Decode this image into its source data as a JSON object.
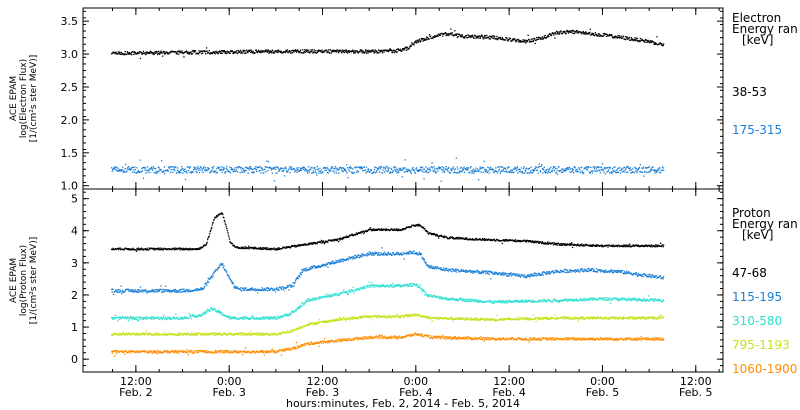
{
  "chart_data": {
    "type": "scatter",
    "x_axis": {
      "label": "hours:minutes, Feb.  2, 2014 - Feb.  5, 2014",
      "ticks": [
        {
          "t": 12,
          "time": "12:00",
          "day": "Feb. 2"
        },
        {
          "t": 24,
          "time": "0:00",
          "day": "Feb. 3"
        },
        {
          "t": 36,
          "time": "12:00",
          "day": "Feb. 3"
        },
        {
          "t": 48,
          "time": "0:00",
          "day": "Feb. 4"
        },
        {
          "t": 60,
          "time": "12:00",
          "day": "Feb. 4"
        },
        {
          "t": 72,
          "time": "0:00",
          "day": "Feb. 5"
        },
        {
          "t": 84,
          "time": "12:00",
          "day": "Feb. 5"
        }
      ],
      "range_hours": [
        5.2,
        87.5
      ],
      "data_range_hours": [
        8.8,
        79.8
      ]
    },
    "panels": [
      {
        "id": "electron",
        "ylabel": [
          "ACE EPAM",
          "log(Electron Flux)",
          "[1/(cm²s ster MeV)]"
        ],
        "ylim": [
          0.95,
          3.7
        ],
        "yticks": [
          1.0,
          1.5,
          2.0,
          2.5,
          3.0,
          3.5
        ],
        "yticklabels": [
          "1.0",
          "1.5",
          "2.0",
          "2.5",
          "3.0",
          "3.5"
        ],
        "legend_title": [
          "Electron",
          "Energy ran",
          "[keV]"
        ],
        "series": [
          {
            "name": "38-53",
            "color": "#000000",
            "knots": [
              [
                8.8,
                3.02
              ],
              [
                30,
                3.05
              ],
              [
                45,
                3.05
              ],
              [
                47,
                3.1
              ],
              [
                48,
                3.2
              ],
              [
                50,
                3.27
              ],
              [
                52,
                3.32
              ],
              [
                54,
                3.28
              ],
              [
                58,
                3.26
              ],
              [
                62,
                3.2
              ],
              [
                64,
                3.25
              ],
              [
                66,
                3.33
              ],
              [
                68,
                3.35
              ],
              [
                72,
                3.3
              ],
              [
                78,
                3.2
              ],
              [
                79.8,
                3.15
              ]
            ],
            "noise": 0.025
          },
          {
            "name": "175-315",
            "color": "#1a7fd6",
            "knots": [
              [
                8.8,
                1.25
              ],
              [
                79.8,
                1.25
              ]
            ],
            "noise": 0.05
          }
        ]
      },
      {
        "id": "proton",
        "ylabel": [
          "ACE EPAM",
          "log(Proton Flux)",
          "[1/(cm²s ster MeV)]"
        ],
        "ylim": [
          -0.4,
          5.3
        ],
        "yticks": [
          0,
          1,
          2,
          3,
          4,
          5
        ],
        "yticklabels": [
          "0",
          "1",
          "2",
          "3",
          "4",
          "5"
        ],
        "legend_title": [
          "Proton",
          "Energy ran",
          "[keV]"
        ],
        "series": [
          {
            "name": "47-68",
            "color": "#000000",
            "knots": [
              [
                8.8,
                3.45
              ],
              [
                20,
                3.45
              ],
              [
                21,
                3.6
              ],
              [
                22,
                4.4
              ],
              [
                23,
                4.6
              ],
              [
                23.5,
                4.2
              ],
              [
                24,
                3.7
              ],
              [
                24.7,
                3.5
              ],
              [
                30,
                3.45
              ],
              [
                34,
                3.6
              ],
              [
                38,
                3.75
              ],
              [
                40,
                3.9
              ],
              [
                42,
                4.05
              ],
              [
                46,
                4.05
              ],
              [
                47.2,
                4.15
              ],
              [
                48.5,
                4.2
              ],
              [
                49.5,
                3.95
              ],
              [
                52,
                3.8
              ],
              [
                56,
                3.75
              ],
              [
                62,
                3.7
              ],
              [
                66,
                3.6
              ],
              [
                72,
                3.55
              ],
              [
                79.8,
                3.55
              ]
            ],
            "noise": 0.03
          },
          {
            "name": "115-195",
            "color": "#1a7fd6",
            "knots": [
              [
                8.8,
                2.15
              ],
              [
                18,
                2.15
              ],
              [
                20.5,
                2.2
              ],
              [
                22,
                2.7
              ],
              [
                23,
                3.0
              ],
              [
                24,
                2.5
              ],
              [
                25,
                2.2
              ],
              [
                30,
                2.2
              ],
              [
                32,
                2.3
              ],
              [
                33.5,
                2.8
              ],
              [
                36,
                2.95
              ],
              [
                40,
                3.2
              ],
              [
                42,
                3.3
              ],
              [
                46,
                3.3
              ],
              [
                47.5,
                3.35
              ],
              [
                48.5,
                3.3
              ],
              [
                49.5,
                2.9
              ],
              [
                52,
                2.8
              ],
              [
                58,
                2.7
              ],
              [
                62,
                2.6
              ],
              [
                66,
                2.75
              ],
              [
                70,
                2.8
              ],
              [
                74,
                2.75
              ],
              [
                79.8,
                2.55
              ]
            ],
            "noise": 0.05
          },
          {
            "name": "310-580",
            "color": "#2ee0d0",
            "knots": [
              [
                8.8,
                1.3
              ],
              [
                18,
                1.3
              ],
              [
                20.5,
                1.4
              ],
              [
                21.5,
                1.6
              ],
              [
                22.5,
                1.5
              ],
              [
                24,
                1.3
              ],
              [
                30,
                1.3
              ],
              [
                32,
                1.45
              ],
              [
                34,
                1.85
              ],
              [
                38,
                2.05
              ],
              [
                42,
                2.3
              ],
              [
                46,
                2.3
              ],
              [
                48,
                2.35
              ],
              [
                49.5,
                2.0
              ],
              [
                52,
                1.9
              ],
              [
                58,
                1.8
              ],
              [
                66,
                1.85
              ],
              [
                72,
                1.9
              ],
              [
                79.8,
                1.85
              ]
            ],
            "noise": 0.04
          },
          {
            "name": "795-1193",
            "color": "#c8e01a",
            "knots": [
              [
                8.8,
                0.8
              ],
              [
                30,
                0.8
              ],
              [
                32,
                0.9
              ],
              [
                34,
                1.1
              ],
              [
                38,
                1.25
              ],
              [
                42,
                1.35
              ],
              [
                46,
                1.35
              ],
              [
                48,
                1.4
              ],
              [
                50,
                1.3
              ],
              [
                58,
                1.25
              ],
              [
                66,
                1.3
              ],
              [
                72,
                1.3
              ],
              [
                79.8,
                1.3
              ]
            ],
            "noise": 0.035
          },
          {
            "name": "1060-1900",
            "color": "#ff8c00",
            "knots": [
              [
                8.8,
                0.25
              ],
              [
                30,
                0.25
              ],
              [
                32,
                0.35
              ],
              [
                34,
                0.5
              ],
              [
                38,
                0.6
              ],
              [
                42,
                0.7
              ],
              [
                46,
                0.7
              ],
              [
                48,
                0.8
              ],
              [
                50,
                0.7
              ],
              [
                58,
                0.65
              ],
              [
                66,
                0.65
              ],
              [
                72,
                0.65
              ],
              [
                79.8,
                0.65
              ]
            ],
            "noise": 0.04
          }
        ]
      }
    ]
  }
}
